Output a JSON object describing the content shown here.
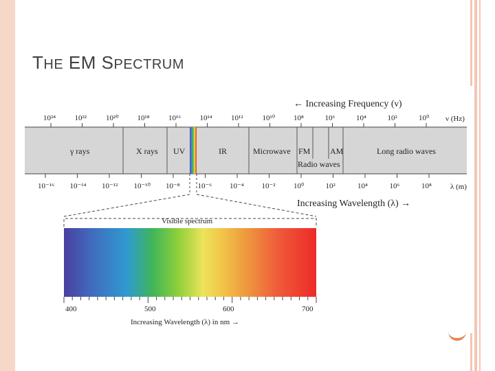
{
  "slide": {
    "title_first_big": "T",
    "title_first_rest": "HE",
    "title_second_big": "EM",
    "title_third_big": "S",
    "title_third_rest": "PECTRUM"
  },
  "figure": {
    "freq_axis_label": "← Increasing Frequency (ν)",
    "freq_unit": "ν (Hz)",
    "freq_ticks": [
      "10²⁴",
      "10²²",
      "10²⁰",
      "10¹⁸",
      "10¹⁶",
      "10¹⁴",
      "10¹²",
      "10¹⁰",
      "10⁸",
      "10⁶",
      "10⁴",
      "10²",
      "10⁰"
    ],
    "bands": [
      "γ rays",
      "X rays",
      "UV",
      "IR",
      "Microwave",
      "FM",
      "AM",
      "Long radio waves"
    ],
    "radio_label": "Radio waves",
    "wl_ticks": [
      "10⁻¹⁶",
      "10⁻¹⁴",
      "10⁻¹²",
      "10⁻¹⁰",
      "10⁻⁸",
      "10⁻⁶",
      "10⁻⁴",
      "10⁻²",
      "10⁰",
      "10²",
      "10⁴",
      "10⁶",
      "10⁸"
    ],
    "wl_unit": "λ (m)",
    "wl_axis_label": "Increasing Wavelength (λ) →",
    "visible_label": "Visible spectrum",
    "visible_ticks": [
      "400",
      "500",
      "600",
      "700"
    ],
    "visible_axis_label": "Increasing Wavelength (λ) in nm →"
  }
}
